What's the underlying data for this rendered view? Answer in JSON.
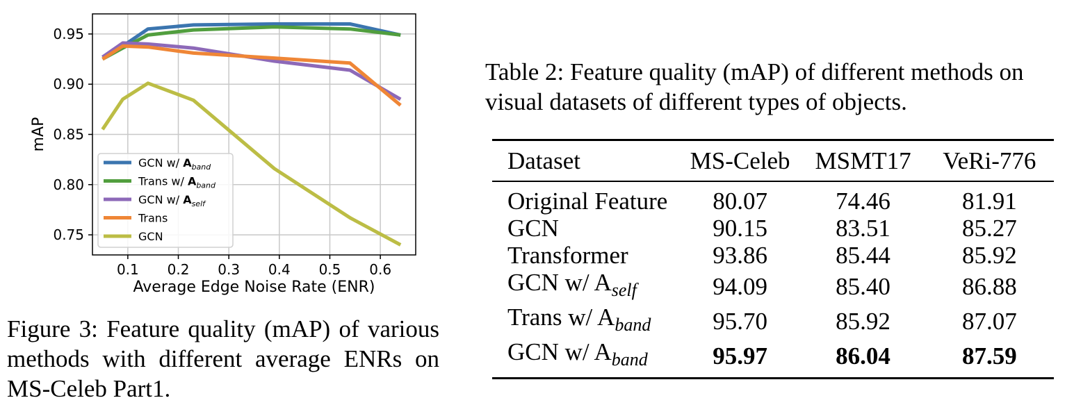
{
  "figure": {
    "caption": "Figure 3: Feature quality (mAP) of various methods with different average ENRs on MS-Celeb Part1."
  },
  "chart_data": {
    "type": "line",
    "xlabel": "Average Edge Noise Rate (ENR)",
    "ylabel": "mAP",
    "xlim": [
      0.03,
      0.67
    ],
    "ylim": [
      0.73,
      0.97
    ],
    "xticks": [
      "0.1",
      "0.2",
      "0.3",
      "0.4",
      "0.5",
      "0.6"
    ],
    "yticks": [
      "0.75",
      "0.80",
      "0.85",
      "0.90",
      "0.95"
    ],
    "grid": true,
    "legend_position": "lower-left",
    "x": [
      0.05,
      0.09,
      0.14,
      0.23,
      0.39,
      0.54,
      0.64
    ],
    "series": [
      {
        "name": "GCN w/ A",
        "name_sub": "band",
        "color": "#3b75af",
        "values": [
          0.927,
          0.938,
          0.955,
          0.959,
          0.96,
          0.96,
          0.949
        ]
      },
      {
        "name": "Trans w/ A",
        "name_sub": "band",
        "color": "#519e3e",
        "values": [
          0.925,
          0.936,
          0.949,
          0.954,
          0.957,
          0.955,
          0.949
        ]
      },
      {
        "name": "GCN w/ A",
        "name_sub": "self",
        "color": "#8d69b8",
        "values": [
          0.927,
          0.941,
          0.94,
          0.936,
          0.923,
          0.914,
          0.885
        ]
      },
      {
        "name": "Trans",
        "name_sub": "",
        "color": "#ef8636",
        "values": [
          0.925,
          0.938,
          0.937,
          0.931,
          0.926,
          0.921,
          0.879
        ]
      },
      {
        "name": "GCN",
        "name_sub": "",
        "color": "#bcbd45",
        "values": [
          0.855,
          0.885,
          0.901,
          0.884,
          0.816,
          0.767,
          0.74
        ]
      }
    ]
  },
  "table": {
    "caption": "Table 2: Feature quality (mAP) of different methods on visual datasets of different types of objects.",
    "headers": [
      "Dataset",
      "MS-Celeb",
      "MSMT17",
      "VeRi-776"
    ],
    "rows": [
      {
        "method": "Original Feature",
        "sub": "",
        "values": [
          "80.07",
          "74.46",
          "81.91"
        ],
        "bold": false
      },
      {
        "method": "GCN",
        "sub": "",
        "values": [
          "90.15",
          "83.51",
          "85.27"
        ],
        "bold": false
      },
      {
        "method": "Transformer",
        "sub": "",
        "values": [
          "93.86",
          "85.44",
          "85.92"
        ],
        "bold": false
      },
      {
        "method": "GCN w/ A",
        "sub": "self",
        "values": [
          "94.09",
          "85.40",
          "86.88"
        ],
        "bold": false
      },
      {
        "method": "Trans w/ A",
        "sub": "band",
        "values": [
          "95.70",
          "85.92",
          "87.07"
        ],
        "bold": false
      },
      {
        "method": "GCN w/ A",
        "sub": "band",
        "values": [
          "95.97",
          "86.04",
          "87.59"
        ],
        "bold": true
      }
    ]
  }
}
